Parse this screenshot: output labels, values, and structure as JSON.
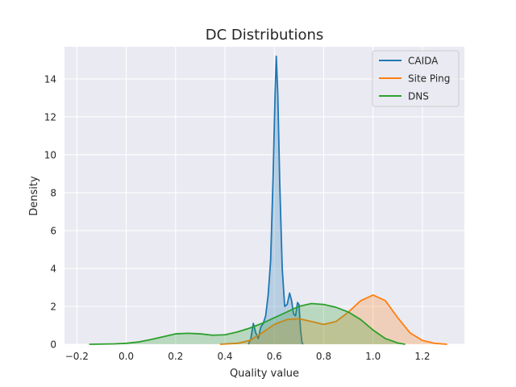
{
  "chart_data": {
    "type": "area",
    "title": "DC Distributions",
    "xlabel": "Quality value",
    "ylabel": "Density",
    "xlim": [
      -0.25,
      1.37
    ],
    "ylim": [
      0,
      15.7
    ],
    "x_ticks": [
      -0.2,
      0.0,
      0.2,
      0.4,
      0.6,
      0.8,
      1.0,
      1.2
    ],
    "x_tick_labels": [
      "−0.2",
      "0.0",
      "0.2",
      "0.4",
      "0.6",
      "0.8",
      "1.0",
      "1.2"
    ],
    "y_ticks": [
      0,
      2,
      4,
      6,
      8,
      10,
      12,
      14
    ],
    "y_tick_labels": [
      "0",
      "2",
      "4",
      "6",
      "8",
      "10",
      "12",
      "14"
    ],
    "grid": true,
    "legend_position": "top-right",
    "series": [
      {
        "name": "CAIDA",
        "color": "#1f77b4",
        "points": [
          [
            0.495,
            0.0
          ],
          [
            0.505,
            0.3
          ],
          [
            0.515,
            1.1
          ],
          [
            0.525,
            0.6
          ],
          [
            0.535,
            0.3
          ],
          [
            0.545,
            0.9
          ],
          [
            0.555,
            1.1
          ],
          [
            0.565,
            1.5
          ],
          [
            0.575,
            2.6
          ],
          [
            0.585,
            4.4
          ],
          [
            0.595,
            8.8
          ],
          [
            0.603,
            13.2
          ],
          [
            0.608,
            15.2
          ],
          [
            0.614,
            13.2
          ],
          [
            0.622,
            8.5
          ],
          [
            0.632,
            4.0
          ],
          [
            0.642,
            2.0
          ],
          [
            0.652,
            2.1
          ],
          [
            0.662,
            2.7
          ],
          [
            0.67,
            2.3
          ],
          [
            0.678,
            1.6
          ],
          [
            0.686,
            1.5
          ],
          [
            0.694,
            2.2
          ],
          [
            0.7,
            2.1
          ],
          [
            0.706,
            0.8
          ],
          [
            0.712,
            0.1
          ],
          [
            0.716,
            0.0
          ]
        ]
      },
      {
        "name": "Site Ping",
        "color": "#ff7f0e",
        "points": [
          [
            0.38,
            0.0
          ],
          [
            0.45,
            0.05
          ],
          [
            0.5,
            0.2
          ],
          [
            0.55,
            0.6
          ],
          [
            0.6,
            1.05
          ],
          [
            0.65,
            1.3
          ],
          [
            0.7,
            1.35
          ],
          [
            0.75,
            1.2
          ],
          [
            0.8,
            1.05
          ],
          [
            0.85,
            1.2
          ],
          [
            0.9,
            1.7
          ],
          [
            0.95,
            2.3
          ],
          [
            1.0,
            2.6
          ],
          [
            1.05,
            2.3
          ],
          [
            1.1,
            1.4
          ],
          [
            1.15,
            0.6
          ],
          [
            1.2,
            0.2
          ],
          [
            1.25,
            0.05
          ],
          [
            1.3,
            0.0
          ]
        ]
      },
      {
        "name": "DNS",
        "color": "#2ca02c",
        "points": [
          [
            -0.15,
            0.0
          ],
          [
            -0.05,
            0.02
          ],
          [
            0.0,
            0.05
          ],
          [
            0.05,
            0.12
          ],
          [
            0.1,
            0.25
          ],
          [
            0.15,
            0.4
          ],
          [
            0.2,
            0.55
          ],
          [
            0.25,
            0.58
          ],
          [
            0.3,
            0.55
          ],
          [
            0.35,
            0.48
          ],
          [
            0.4,
            0.5
          ],
          [
            0.45,
            0.65
          ],
          [
            0.5,
            0.85
          ],
          [
            0.55,
            1.1
          ],
          [
            0.6,
            1.4
          ],
          [
            0.65,
            1.7
          ],
          [
            0.7,
            2.0
          ],
          [
            0.75,
            2.15
          ],
          [
            0.8,
            2.1
          ],
          [
            0.85,
            1.95
          ],
          [
            0.9,
            1.7
          ],
          [
            0.95,
            1.3
          ],
          [
            1.0,
            0.75
          ],
          [
            1.05,
            0.3
          ],
          [
            1.1,
            0.07
          ],
          [
            1.13,
            0.0
          ]
        ]
      }
    ]
  }
}
